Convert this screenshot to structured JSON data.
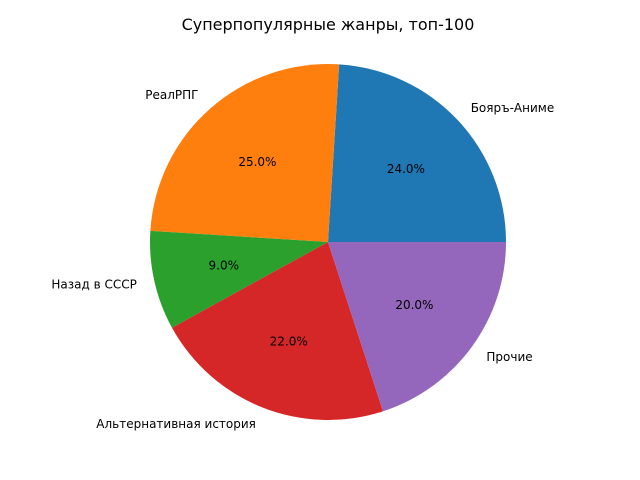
{
  "chart_data": {
    "type": "pie",
    "title": "Суперпопулярные жанры, топ-100",
    "slices": [
      {
        "label": "Бояръ-Аниме",
        "value": 24,
        "pct_label": "24.0%",
        "color": "#1f77b4"
      },
      {
        "label": "РеалРПГ",
        "value": 25,
        "pct_label": "25.0%",
        "color": "#ff7f0e"
      },
      {
        "label": "Назад в СССР",
        "value": 9,
        "pct_label": "9.0%",
        "color": "#2ca02c"
      },
      {
        "label": "Альтернативная история",
        "value": 22,
        "pct_label": "22.0%",
        "color": "#d62728"
      },
      {
        "label": "Прочие",
        "value": 20,
        "pct_label": "20.0%",
        "color": "#9467bd"
      }
    ],
    "start_angle_deg": 0,
    "direction": "counterclockwise",
    "legend": "none"
  }
}
